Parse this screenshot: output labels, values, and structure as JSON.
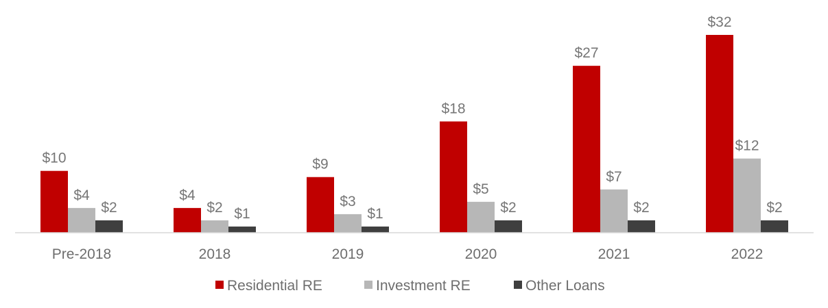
{
  "chart_data": {
    "type": "bar",
    "title": "",
    "xlabel": "",
    "ylabel": "",
    "categories": [
      "Pre-2018",
      "2018",
      "2019",
      "2020",
      "2021",
      "2022"
    ],
    "series": [
      {
        "name": "Residential RE",
        "color": "#c00000",
        "values": [
          10,
          4,
          9,
          18,
          27,
          32
        ],
        "labels": [
          "$10",
          "$4",
          "$9",
          "$18",
          "$27",
          "$32"
        ]
      },
      {
        "name": "Investment RE",
        "color": "#b7b7b7",
        "values": [
          4,
          2,
          3,
          5,
          7,
          12
        ],
        "labels": [
          "$4",
          "$2",
          "$3",
          "$5",
          "$7",
          "$12"
        ]
      },
      {
        "name": "Other Loans",
        "color": "#3f3f3f",
        "values": [
          2,
          1,
          1,
          2,
          2,
          2
        ],
        "labels": [
          "$2",
          "$1",
          "$1",
          "$2",
          "$2",
          "$2"
        ]
      }
    ],
    "ylim": [
      0,
      32
    ],
    "grid": false,
    "legend_position": "bottom"
  }
}
